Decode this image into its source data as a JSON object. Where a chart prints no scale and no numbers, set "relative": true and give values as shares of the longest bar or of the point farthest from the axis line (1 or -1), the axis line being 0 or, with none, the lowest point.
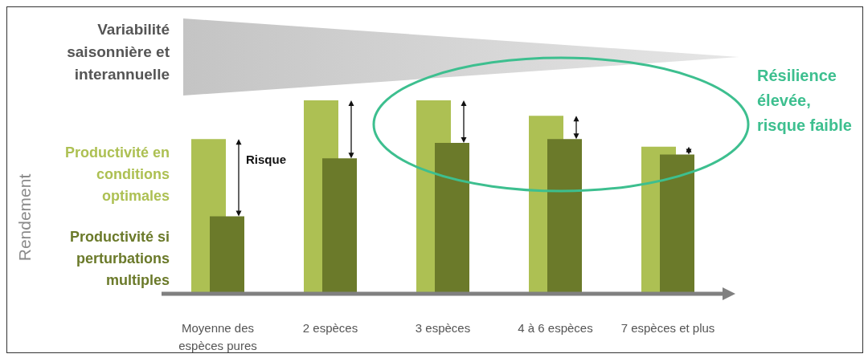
{
  "chart_data": {
    "type": "bar",
    "relative": true,
    "legend": "left",
    "categories": [
      "Moyenne des espèces pures",
      "2 espèces",
      "3 espèces",
      "4 à 6 espèces",
      "7 espèces et plus"
    ],
    "series": [
      {
        "name": "Productivité en conditions optimales",
        "color": "#adc053",
        "values": [
          0.8,
          1,
          1,
          0.92,
          0.76
        ]
      },
      {
        "name": "Productivité si perturbations multiples",
        "color": "#6b7a2a",
        "values": [
          0.4,
          0.7,
          0.78,
          0.8,
          0.72
        ]
      }
    ],
    "annotations": [
      "Variabilité saisonnière et interannuelle",
      "Risque",
      "Résilience élevée, risque faible",
      "Rendement"
    ]
  }
}
